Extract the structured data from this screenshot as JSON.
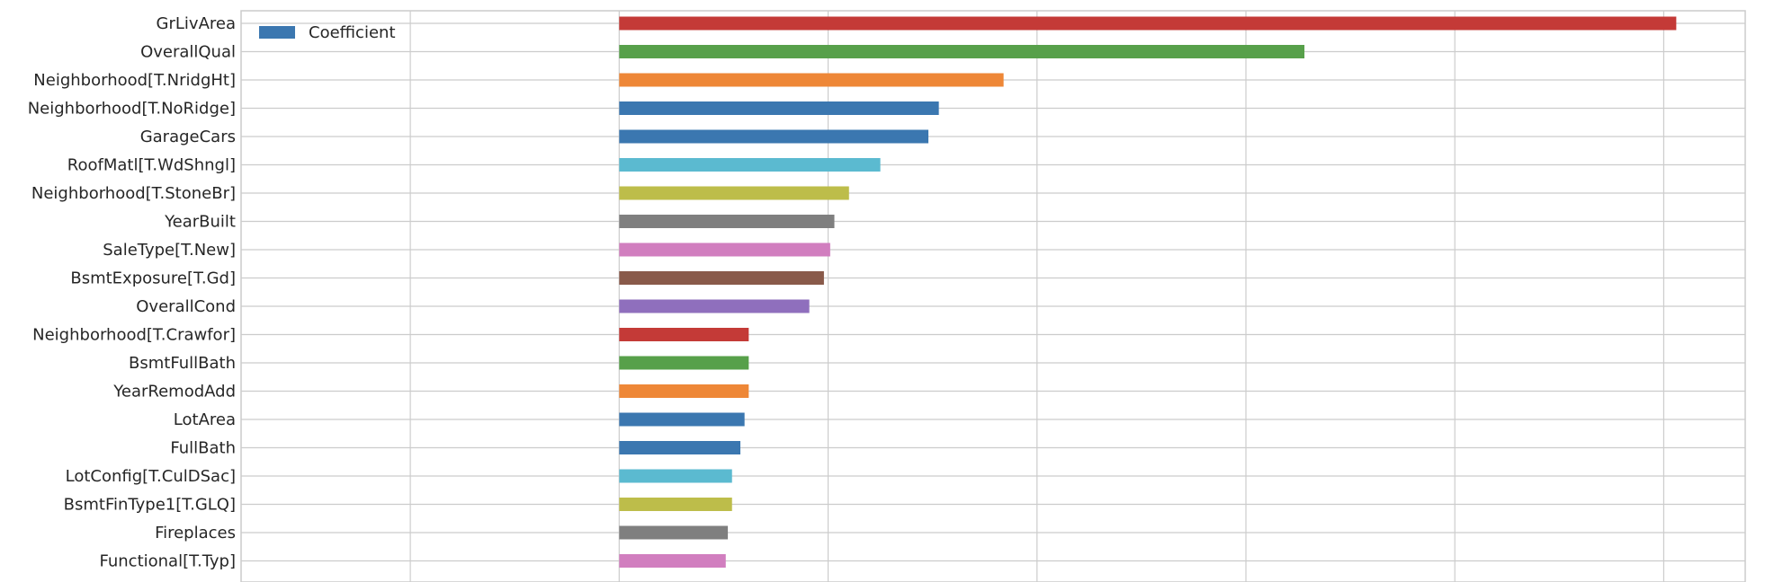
{
  "chart_data": {
    "type": "bar",
    "orientation": "horizontal",
    "categories": [
      "GrLivArea",
      "OverallQual",
      "Neighborhood[T.NridgHt]",
      "Neighborhood[T.NoRidge]",
      "GarageCars",
      "RoofMatl[T.WdShngl]",
      "Neighborhood[T.StoneBr]",
      "YearBuilt",
      "SaleType[T.New]",
      "BsmtExposure[T.Gd]",
      "OverallCond",
      "Neighborhood[T.Crawfor]",
      "BsmtFullBath",
      "YearRemodAdd",
      "LotArea",
      "FullBath",
      "LotConfig[T.CulDSac]",
      "BsmtFinType1[T.GLQ]",
      "Fireplaces",
      "Functional[T.Typ]"
    ],
    "series": [
      {
        "name": "Coefficient",
        "values": [
          5.06,
          3.28,
          1.84,
          1.53,
          1.48,
          1.25,
          1.1,
          1.03,
          1.01,
          0.98,
          0.91,
          0.62,
          0.62,
          0.62,
          0.6,
          0.58,
          0.54,
          0.54,
          0.52,
          0.51
        ]
      }
    ],
    "bar_colors": [
      "#c43a37",
      "#57a04a",
      "#ee8737",
      "#3b77b0",
      "#3b77b0",
      "#5bbad0",
      "#bdbd4a",
      "#7f7f7f",
      "#d17ebf",
      "#895a4a",
      "#8f6fbd",
      "#c43a37",
      "#57a04a",
      "#ee8737",
      "#3b77b0",
      "#3b77b0",
      "#5bbad0",
      "#bdbd4a",
      "#7f7f7f",
      "#d17ebf"
    ],
    "xlim": [
      -1.81,
      5.39
    ],
    "xgrid": [
      -1.0,
      0.0,
      1.0,
      2.0,
      3.0,
      4.0,
      5.0
    ],
    "grid": true,
    "legend": {
      "placement": "top-left",
      "entry": "Coefficient",
      "color": "#3b77b0"
    },
    "title": "",
    "xlabel": "",
    "ylabel": ""
  }
}
